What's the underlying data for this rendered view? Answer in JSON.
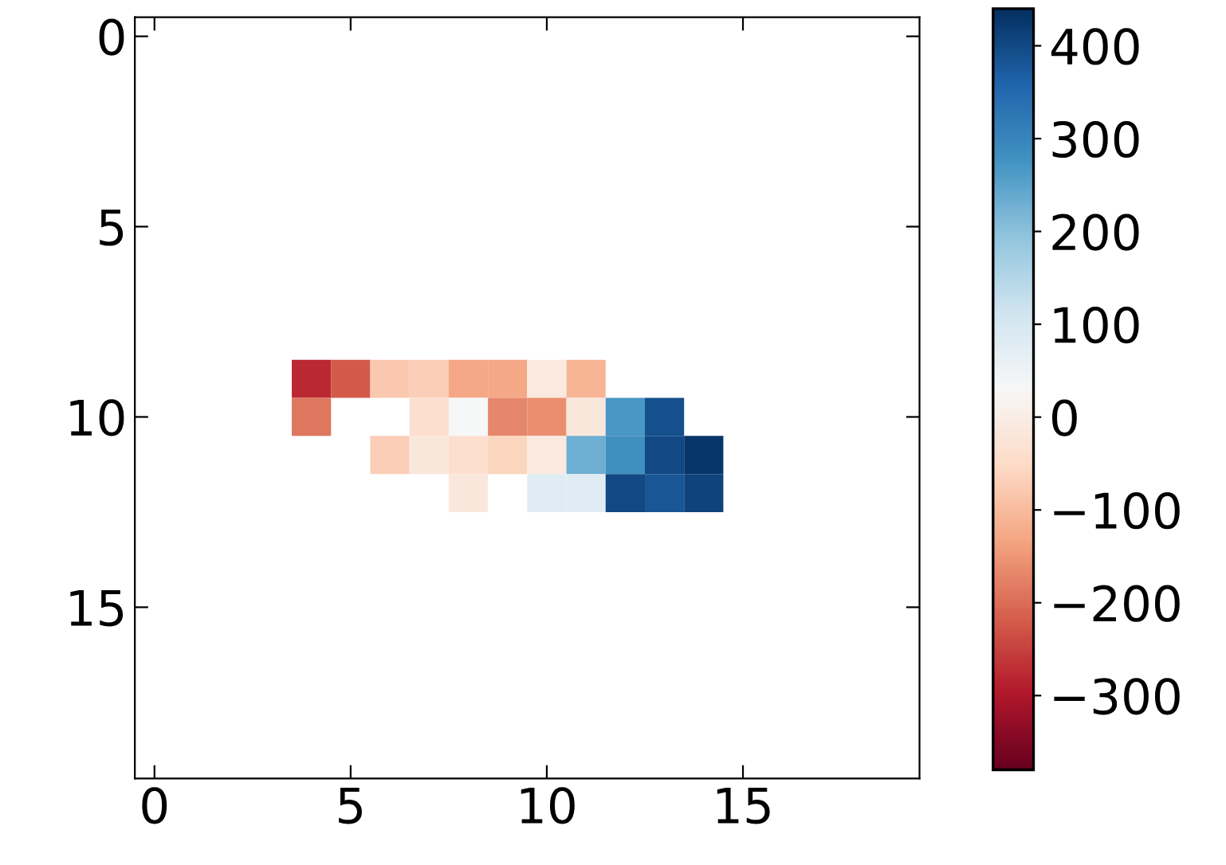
{
  "chart_data": {
    "type": "heatmap",
    "x": [
      4,
      5,
      6,
      7,
      8,
      9,
      10,
      11,
      12,
      13,
      14
    ],
    "y": [
      9,
      10,
      11,
      12
    ],
    "cells": [
      [
        -280,
        -220,
        -80,
        -70,
        -130,
        -130,
        -10,
        -110,
        null,
        null,
        null
      ],
      [
        -190,
        null,
        null,
        -40,
        30,
        -170,
        -160,
        -15,
        270,
        390,
        null
      ],
      [
        null,
        null,
        -70,
        -15,
        -40,
        -60,
        -10,
        230,
        280,
        400,
        430
      ],
      [
        null,
        null,
        null,
        null,
        -15,
        null,
        80,
        80,
        400,
        380,
        410
      ]
    ],
    "xlim": [
      -0.5,
      19.5
    ],
    "ylim": [
      19.5,
      -0.5
    ],
    "xticks": [
      0,
      5,
      10,
      15
    ],
    "yticks": [
      0,
      5,
      10,
      15
    ],
    "clim": [
      -380,
      440
    ],
    "cticks": [
      -300,
      -200,
      -100,
      0,
      100,
      200,
      300,
      400
    ]
  }
}
